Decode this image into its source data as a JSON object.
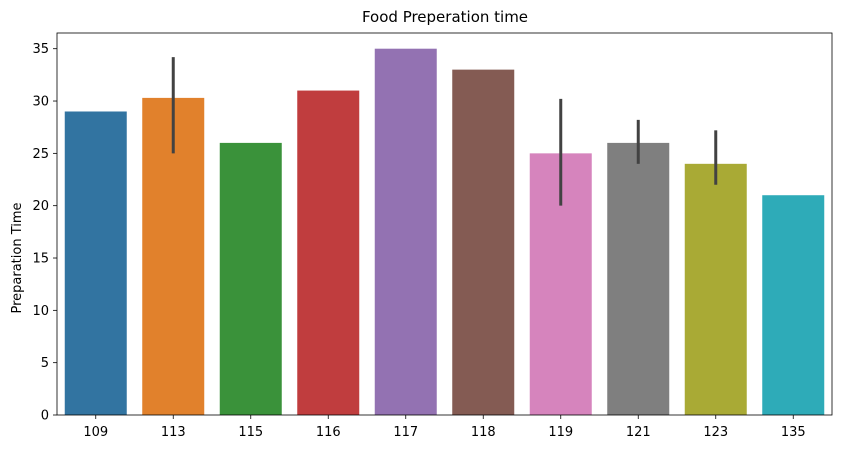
{
  "chart_data": {
    "type": "bar",
    "title": "Food Preperation time",
    "xlabel": "",
    "ylabel": "Preparation Time",
    "categories": [
      "109",
      "113",
      "115",
      "116",
      "117",
      "118",
      "119",
      "121",
      "123",
      "135"
    ],
    "values": [
      29,
      30.3,
      26,
      31,
      35,
      33,
      25,
      26,
      24,
      21
    ],
    "error_bars": [
      null,
      [
        25,
        34.2
      ],
      null,
      null,
      null,
      null,
      [
        20,
        30.2
      ],
      [
        24,
        28.2
      ],
      [
        22,
        27.2
      ],
      null
    ],
    "ylim": [
      0,
      36.5
    ],
    "yticks": [
      0,
      5,
      10,
      15,
      20,
      25,
      30,
      35
    ],
    "grid": false,
    "colors": [
      "#3274a1",
      "#e1812c",
      "#3a923a",
      "#c03d3e",
      "#9372b2",
      "#845b53",
      "#d684bd",
      "#7f7f7f",
      "#a9aa35",
      "#2eabb8"
    ],
    "error_color": "#424242"
  }
}
